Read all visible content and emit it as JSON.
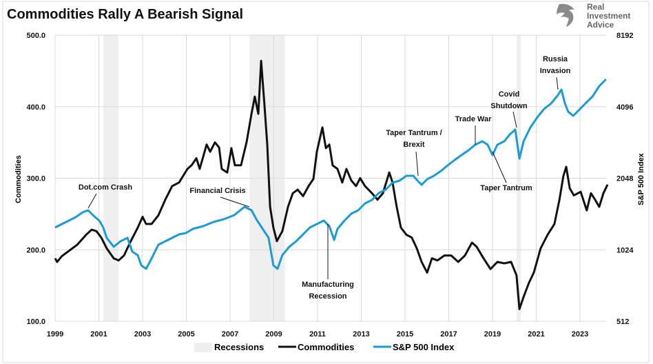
{
  "logo": {
    "text": "Real Investment Advice"
  },
  "chart_data": {
    "type": "line",
    "title": "Commodities Rally A Bearish Signal",
    "ylabel": "Commodities",
    "ylabel_right": "S&P 500 Index",
    "ylim": [
      100,
      500
    ],
    "ylim_right": [
      512,
      8192
    ],
    "right_scale": "log2",
    "y_ticks": [
      "100.0",
      "200.0",
      "300.0",
      "400.0",
      "500.0"
    ],
    "y_ticks_right": [
      "512",
      "1024",
      "2048",
      "4096",
      "8192"
    ],
    "x_ticks": [
      "1999",
      "2001",
      "2003",
      "2005",
      "2007",
      "2009",
      "2011",
      "2013",
      "2015",
      "2017",
      "2019",
      "2021",
      "2023"
    ],
    "grid": true,
    "legend_position": "bottom",
    "legend": [
      "Recessions",
      "Commodities",
      "S&P 500 Index"
    ],
    "colors": {
      "recessions": "#efefef",
      "commodities": "#111111",
      "sp500": "#1b9ad6"
    },
    "recessions": [
      [
        2001.2,
        2001.9
      ],
      [
        2007.9,
        2009.5
      ],
      [
        2020.1,
        2020.3
      ]
    ],
    "series": [
      {
        "name": "Commodities",
        "axis": "left",
        "x": [
          1999.0,
          1999.09,
          1999.31,
          2000.01,
          2000.42,
          2000.67,
          2000.89,
          2001.11,
          2001.36,
          2001.68,
          2001.9,
          2002.15,
          2002.46,
          2002.78,
          2003.0,
          2003.16,
          2003.41,
          2003.72,
          2004.04,
          2004.35,
          2004.67,
          2005.05,
          2005.24,
          2005.46,
          2005.61,
          2005.93,
          2006.09,
          2006.31,
          2006.5,
          2006.62,
          2006.87,
          2007.06,
          2007.22,
          2007.5,
          2007.76,
          2007.98,
          2008.13,
          2008.29,
          2008.42,
          2008.57,
          2008.7,
          2008.83,
          2008.98,
          2009.14,
          2009.39,
          2009.65,
          2009.87,
          2010.09,
          2010.34,
          2010.59,
          2010.81,
          2010.97,
          2011.22,
          2011.38,
          2011.54,
          2011.69,
          2011.91,
          2012.13,
          2012.32,
          2012.54,
          2012.76,
          2012.95,
          2013.17,
          2013.49,
          2013.74,
          2013.99,
          2014.28,
          2014.43,
          2014.62,
          2014.81,
          2015.06,
          2015.31,
          2015.54,
          2015.76,
          2016.01,
          2016.23,
          2016.48,
          2016.8,
          2017.11,
          2017.43,
          2017.74,
          2018.06,
          2018.28,
          2018.59,
          2018.91,
          2019.22,
          2019.54,
          2019.85,
          2020.1,
          2020.23,
          2020.42,
          2020.67,
          2020.89,
          2021.2,
          2021.52,
          2021.83,
          2022.06,
          2022.24,
          2022.37,
          2022.53,
          2022.72,
          2023.03,
          2023.31,
          2023.5,
          2023.69,
          2023.88,
          2024.07,
          2024.26
        ],
        "y": [
          188,
          183,
          191,
          207,
          221,
          228,
          226,
          217,
          202,
          188,
          185,
          192,
          212,
          231,
          246,
          236,
          236,
          248,
          270,
          289,
          294,
          313,
          318,
          328,
          313,
          347,
          337,
          350,
          343,
          313,
          308,
          342,
          318,
          318,
          351,
          390,
          414,
          390,
          464,
          404,
          347,
          260,
          231,
          212,
          226,
          260,
          279,
          284,
          275,
          289,
          299,
          337,
          371,
          342,
          347,
          318,
          313,
          294,
          313,
          297,
          289,
          300,
          289,
          279,
          270,
          279,
          308,
          294,
          260,
          231,
          221,
          217,
          202,
          183,
          168,
          188,
          185,
          192,
          192,
          183,
          192,
          210,
          204,
          188,
          173,
          183,
          181,
          183,
          164,
          117,
          134,
          154,
          168,
          202,
          221,
          236,
          270,
          303,
          316,
          286,
          276,
          281,
          255,
          279,
          270,
          260,
          279,
          291
        ]
      },
      {
        "name": "S&P 500 Index",
        "axis": "right",
        "x": [
          1999.0,
          1999.31,
          1999.63,
          1999.94,
          2000.26,
          2000.51,
          2000.76,
          2001.02,
          2001.2,
          2001.36,
          2001.68,
          2001.99,
          2002.31,
          2002.53,
          2002.78,
          2002.94,
          2003.16,
          2003.41,
          2003.72,
          2004.04,
          2004.35,
          2004.67,
          2004.98,
          2005.3,
          2005.77,
          2006.24,
          2006.72,
          2007.19,
          2007.66,
          2007.98,
          2008.2,
          2008.45,
          2008.76,
          2008.98,
          2009.17,
          2009.39,
          2009.71,
          2010.02,
          2010.34,
          2010.65,
          2010.97,
          2011.28,
          2011.54,
          2011.76,
          2011.91,
          2012.23,
          2012.54,
          2012.86,
          2013.17,
          2013.49,
          2013.8,
          2014.12,
          2014.43,
          2014.75,
          2015.06,
          2015.38,
          2015.57,
          2015.76,
          2016.01,
          2016.32,
          2016.64,
          2016.95,
          2017.27,
          2017.58,
          2017.9,
          2018.21,
          2018.53,
          2018.78,
          2019.0,
          2019.22,
          2019.54,
          2019.79,
          2020.04,
          2020.23,
          2020.42,
          2020.73,
          2021.05,
          2021.36,
          2021.68,
          2021.99,
          2022.15,
          2022.31,
          2022.46,
          2022.69,
          2022.94,
          2023.25,
          2023.57,
          2023.88,
          2024.19
        ],
        "y": [
          1270,
          1313,
          1358,
          1404,
          1471,
          1501,
          1423,
          1358,
          1270,
          1149,
          1054,
          1111,
          1149,
          1005,
          972,
          880,
          851,
          940,
          1075,
          1111,
          1149,
          1188,
          1204,
          1253,
          1287,
          1340,
          1377,
          1432,
          1552,
          1501,
          1377,
          1270,
          1149,
          880,
          851,
          972,
          1054,
          1111,
          1188,
          1270,
          1313,
          1358,
          1287,
          1126,
          1253,
          1358,
          1452,
          1501,
          1605,
          1659,
          1774,
          1834,
          1961,
          2000,
          2097,
          2097,
          2000,
          1921,
          2028,
          2097,
          2197,
          2317,
          2444,
          2562,
          2684,
          2831,
          2929,
          2831,
          2562,
          2831,
          2929,
          3130,
          3280,
          2478,
          2929,
          3346,
          3699,
          4008,
          4229,
          4580,
          4833,
          4229,
          3901,
          3748,
          3953,
          4229,
          4521,
          4997,
          5342
        ]
      }
    ],
    "annotations": [
      {
        "lines": [
          "Dot.com Crash"
        ]
      },
      {
        "lines": [
          "Financial Crisis"
        ]
      },
      {
        "lines": [
          "Manufacturing",
          "Recession"
        ]
      },
      {
        "lines": [
          "Taper Tantrum /",
          "Brexit"
        ]
      },
      {
        "lines": [
          "Trade War"
        ]
      },
      {
        "lines": [
          "Covid",
          "Shutdown"
        ]
      },
      {
        "lines": [
          "Taper Tantrum"
        ]
      },
      {
        "lines": [
          "Russia",
          "Invasion"
        ]
      }
    ]
  }
}
